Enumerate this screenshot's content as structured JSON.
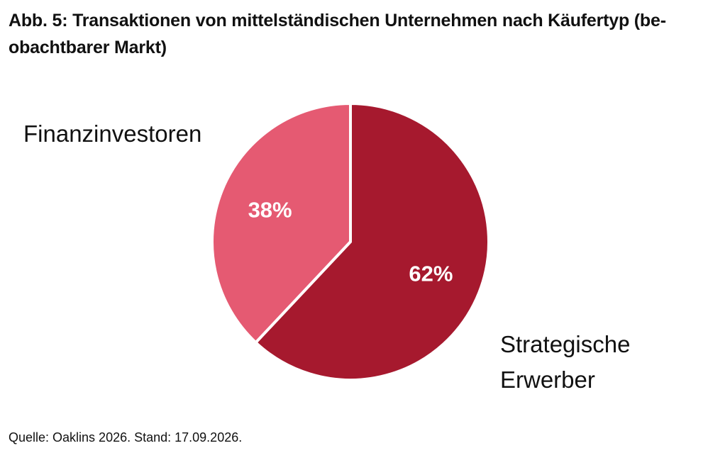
{
  "chart_data": {
    "type": "pie",
    "title": [
      "Abb. 5: Transaktionen von mittelständischen Unternehmen nach Käufertyp (be-",
      "obachtbarer Markt)"
    ],
    "categories": [
      "Strategische Erwerber",
      "Finanzinvestoren"
    ],
    "category_label_lines": [
      [
        "Strategische",
        "Erwerber"
      ],
      [
        "Finanzinvestoren"
      ]
    ],
    "values": [
      62,
      38
    ],
    "data_labels": [
      "62%",
      "38%"
    ],
    "colors": [
      "#a6192e",
      "#e55a72"
    ],
    "start_angle_deg": 0,
    "direction": "clockwise"
  },
  "source": "Quelle: Oaklins 2026. Stand: 17.09.2026."
}
